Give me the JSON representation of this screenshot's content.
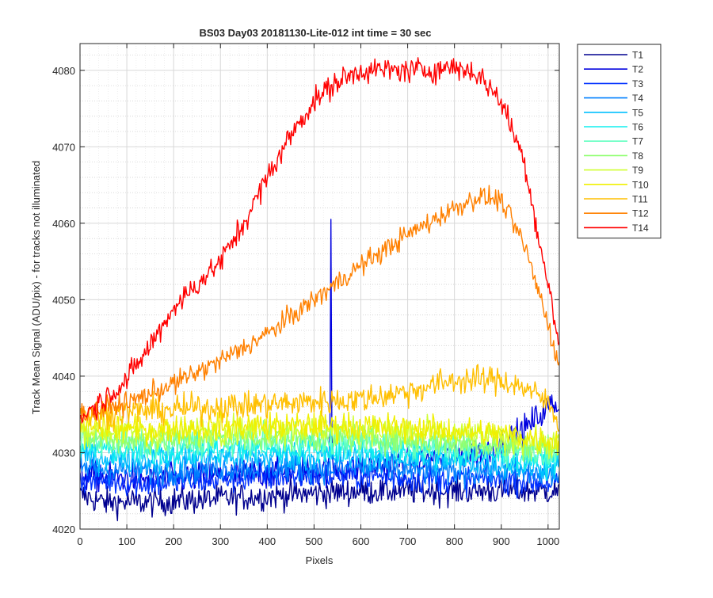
{
  "chart_data": {
    "type": "line",
    "title": "BS03 Day03 20181130-Lite-012 int time = 30 sec",
    "xlabel": "Pixels",
    "ylabel": "Track Mean Signal (ADU/pix) - for tracks not illuminated",
    "xlim": [
      0,
      1024
    ],
    "ylim": [
      4020,
      4083.5
    ],
    "x_ticks": [
      0,
      100,
      200,
      300,
      400,
      500,
      600,
      700,
      800,
      900,
      1000
    ],
    "y_ticks": [
      4020,
      4030,
      4040,
      4050,
      4060,
      4070,
      4080
    ],
    "grid": "major and minor, dotted",
    "legend_position": "outside-right-top",
    "series": [
      {
        "name": "T1",
        "color": "#00008f",
        "noise": 1.8,
        "x": [
          0,
          50,
          150,
          300,
          450,
          600,
          750,
          900,
          950,
          1024
        ],
        "values": [
          4024.5,
          4023.5,
          4023.5,
          4024,
          4024.5,
          4025,
          4025,
          4025,
          4025,
          4025
        ]
      },
      {
        "name": "T2",
        "color": "#0000df",
        "noise": 2.0,
        "x": [
          0,
          150,
          300,
          450,
          600,
          750,
          850,
          900,
          950,
          1000,
          1024
        ],
        "values": [
          4027,
          4026.5,
          4027,
          4027.5,
          4028,
          4029,
          4030,
          4031,
          4033,
          4036,
          4036.5
        ]
      },
      {
        "name": "T3",
        "color": "#0030ff",
        "noise": 1.8,
        "x": [
          0,
          150,
          300,
          450,
          600,
          750,
          900,
          1024
        ],
        "values": [
          4026.5,
          4026,
          4026.5,
          4027,
          4027,
          4026.5,
          4026.5,
          4026
        ]
      },
      {
        "name": "T4",
        "color": "#0080ff",
        "noise": 1.8,
        "x": [
          0,
          150,
          300,
          450,
          600,
          750,
          900,
          1024
        ],
        "values": [
          4028,
          4027.5,
          4028,
          4028,
          4028,
          4027.5,
          4027.5,
          4027
        ]
      },
      {
        "name": "T5",
        "color": "#00bfff",
        "noise": 1.8,
        "x": [
          0,
          150,
          300,
          450,
          600,
          750,
          900,
          1024
        ],
        "values": [
          4029.5,
          4029,
          4029.5,
          4029.5,
          4029.5,
          4029,
          4028.5,
          4028
        ]
      },
      {
        "name": "T6",
        "color": "#10efef",
        "noise": 1.8,
        "x": [
          0,
          150,
          300,
          450,
          600,
          750,
          900,
          1024
        ],
        "values": [
          4030.5,
          4030,
          4030.5,
          4030.5,
          4030.5,
          4030,
          4029.5,
          4029
        ]
      },
      {
        "name": "T7",
        "color": "#60ffc0",
        "noise": 1.8,
        "x": [
          0,
          150,
          300,
          450,
          600,
          750,
          900,
          1024
        ],
        "values": [
          4031.5,
          4031,
          4031.5,
          4031.5,
          4031.5,
          4031,
          4030.5,
          4030
        ]
      },
      {
        "name": "T8",
        "color": "#90ff70",
        "noise": 1.8,
        "x": [
          0,
          150,
          300,
          450,
          600,
          750,
          900,
          1024
        ],
        "values": [
          4032,
          4031.5,
          4032,
          4032,
          4032,
          4031.5,
          4031,
          4030.5
        ]
      },
      {
        "name": "T9",
        "color": "#d0ff30",
        "noise": 1.8,
        "x": [
          0,
          150,
          300,
          450,
          600,
          750,
          900,
          1024
        ],
        "values": [
          4033,
          4032.5,
          4033,
          4033,
          4033,
          4032.5,
          4032,
          4031
        ]
      },
      {
        "name": "T10",
        "color": "#f0f000",
        "noise": 1.8,
        "x": [
          0,
          150,
          300,
          450,
          600,
          750,
          900,
          1024
        ],
        "values": [
          4033.5,
          4033,
          4033.5,
          4033.5,
          4033.5,
          4033,
          4032.5,
          4031.5
        ]
      },
      {
        "name": "T11",
        "color": "#ffbf00",
        "noise": 1.8,
        "x": [
          0,
          150,
          300,
          450,
          600,
          700,
          800,
          900,
          950,
          1000,
          1024
        ],
        "values": [
          4035,
          4035.5,
          4036,
          4036.5,
          4037,
          4038,
          4039.5,
          4039.5,
          4038.5,
          4036.5,
          4034
        ]
      },
      {
        "name": "T12",
        "color": "#ff8000",
        "noise": 1.4,
        "x": [
          0,
          100,
          200,
          300,
          400,
          500,
          600,
          700,
          800,
          850,
          900,
          950,
          1000,
          1024
        ],
        "values": [
          4035,
          4036.5,
          4039,
          4042,
          4045.5,
          4050,
          4054.5,
          4058.5,
          4062,
          4063.5,
          4063,
          4057,
          4047,
          4041
        ]
      },
      {
        "name": "T14",
        "color": "#ff0000",
        "noise": 1.6,
        "x": [
          0,
          50,
          100,
          150,
          200,
          250,
          300,
          350,
          400,
          450,
          500,
          550,
          600,
          650,
          700,
          750,
          800,
          850,
          900,
          950,
          980,
          1000,
          1024
        ],
        "values": [
          4034.5,
          4037,
          4039.5,
          4044,
          4049,
          4052,
          4055,
          4060,
          4066,
          4071.5,
          4076,
          4078.5,
          4080,
          4080,
          4080,
          4080,
          4080.5,
          4079.5,
          4076,
          4068,
          4058,
          4052,
          4044
        ]
      }
    ],
    "annotations": [
      {
        "series": "T2",
        "type": "spike",
        "x": 536,
        "y_top": 4060.5,
        "y_base": 4033
      }
    ]
  }
}
